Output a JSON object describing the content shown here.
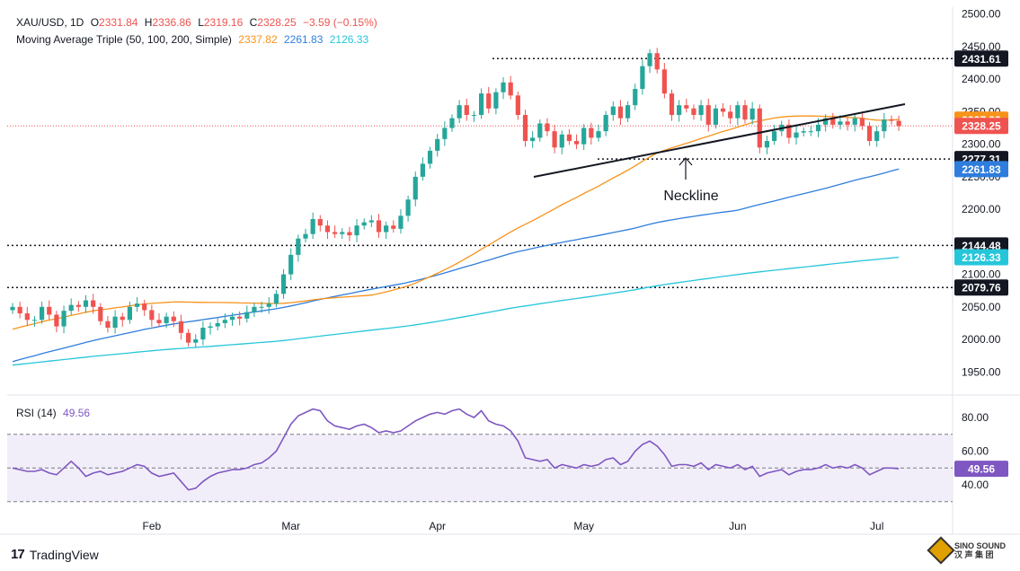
{
  "header": {
    "symbol": "XAU/USD, 1D",
    "open_label": "O",
    "open": "2331.84",
    "high_label": "H",
    "high": "2336.86",
    "low_label": "L",
    "low": "2319.16",
    "close_label": "C",
    "close": "2328.25",
    "change": "−3.59 (−0.15%)",
    "ma_title": "Moving Average Triple (50, 100, 200, Simple)",
    "ma50_value": "2337.82",
    "ma100_value": "2261.83",
    "ma200_value": "2126.33",
    "rsi_title": "RSI (14)",
    "rsi_value": "49.56"
  },
  "colors": {
    "up": "#26a69a",
    "down": "#ef5350",
    "ma50": "#f7931a",
    "ma100": "#2f7ddc",
    "ma200": "#26c6da",
    "rsi": "#7e57c2",
    "rsi_band": "#ede7f6"
  },
  "chart_data": [
    {
      "type": "candlestick",
      "title": "XAU/USD, 1D",
      "x_labels": [
        "Feb",
        "Mar",
        "Apr",
        "May",
        "Jun",
        "Jul"
      ],
      "y_ticks": [
        1950,
        2000,
        2050,
        2100,
        2150,
        2200,
        2250,
        2300,
        2350,
        2400,
        2450,
        2500
      ],
      "ylim": [
        1920,
        2510
      ],
      "closes": [
        2050,
        2040,
        2030,
        2030,
        2050,
        2038,
        2020,
        2044,
        2053,
        2050,
        2060,
        2050,
        2028,
        2018,
        2035,
        2030,
        2050,
        2055,
        2045,
        2030,
        2025,
        2035,
        2028,
        2010,
        1995,
        2000,
        2018,
        2020,
        2025,
        2030,
        2035,
        2032,
        2042,
        2050,
        2050,
        2055,
        2070,
        2100,
        2130,
        2155,
        2162,
        2185,
        2175,
        2165,
        2162,
        2165,
        2160,
        2175,
        2180,
        2183,
        2165,
        2175,
        2170,
        2190,
        2215,
        2250,
        2270,
        2290,
        2308,
        2325,
        2340,
        2360,
        2345,
        2345,
        2378,
        2355,
        2380,
        2395,
        2375,
        2345,
        2305,
        2310,
        2332,
        2320,
        2295,
        2315,
        2305,
        2300,
        2325,
        2310,
        2320,
        2345,
        2358,
        2340,
        2360,
        2385,
        2420,
        2440,
        2415,
        2378,
        2345,
        2360,
        2355,
        2345,
        2360,
        2330,
        2355,
        2350,
        2340,
        2360,
        2338,
        2355,
        2295,
        2305,
        2320,
        2330,
        2310,
        2318,
        2320,
        2320,
        2330,
        2340,
        2330,
        2335,
        2330,
        2340,
        2328,
        2305,
        2320,
        2338,
        2336,
        2328
      ],
      "reference_levels": [
        2431.61,
        2277.31,
        2144.48,
        2079.76
      ],
      "annotation": "Neckline",
      "series": [
        {
          "name": "MA 50",
          "values_end": 2337.82
        },
        {
          "name": "MA 100",
          "values_end": 2261.83
        },
        {
          "name": "MA 200",
          "values_end": 2126.33
        }
      ],
      "last_price": 2328.25,
      "grid": false
    },
    {
      "type": "line",
      "title": "RSI (14)",
      "y_ticks": [
        40,
        60,
        80
      ],
      "ylim": [
        25,
        90
      ],
      "bands": [
        30,
        50,
        70
      ],
      "values": [
        50,
        49,
        48,
        48,
        49,
        47,
        46,
        50,
        54,
        50,
        45,
        47,
        48,
        46,
        47,
        48,
        50,
        52,
        51,
        47,
        45,
        46,
        47,
        42,
        37,
        38,
        42,
        45,
        47,
        48,
        49,
        49,
        50,
        52,
        53,
        56,
        60,
        68,
        76,
        81,
        83,
        85,
        84,
        78,
        75,
        74,
        73,
        75,
        76,
        74,
        71,
        72,
        71,
        72,
        75,
        78,
        80,
        82,
        83,
        82,
        84,
        85,
        82,
        80,
        84,
        78,
        76,
        75,
        72,
        66,
        56,
        55,
        54,
        55,
        50,
        52,
        51,
        50,
        52,
        51,
        52,
        55,
        56,
        52,
        54,
        60,
        64,
        66,
        63,
        58,
        51,
        52,
        52,
        51,
        53,
        49,
        52,
        51,
        50,
        52,
        49,
        51,
        45,
        47,
        48,
        49,
        46,
        48,
        49,
        49,
        50,
        52,
        50,
        51,
        50,
        52,
        50,
        46,
        48,
        50,
        50,
        49.56
      ],
      "last_value": 49.56
    }
  ]
}
